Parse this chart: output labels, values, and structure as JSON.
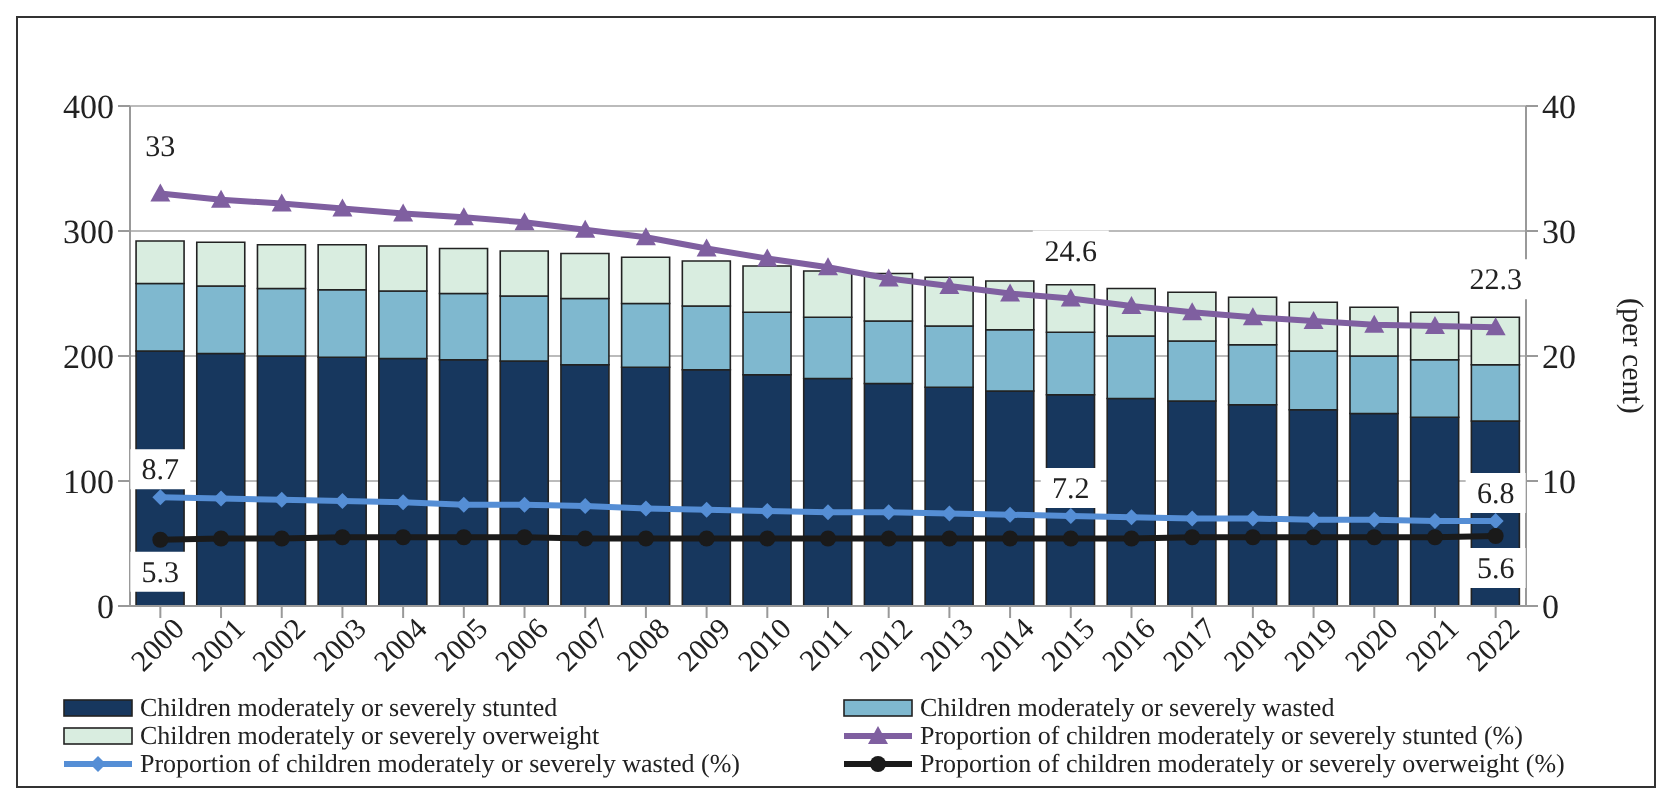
{
  "chart_data": {
    "type": "bar",
    "stacked": true,
    "y2label": "(per cent)",
    "categories": [
      "2000",
      "2001",
      "2002",
      "2003",
      "2004",
      "2005",
      "2006",
      "2007",
      "2008",
      "2009",
      "2010",
      "2011",
      "2012",
      "2013",
      "2014",
      "2015",
      "2016",
      "2017",
      "2018",
      "2019",
      "2020",
      "2021",
      "2022"
    ],
    "series": [
      {
        "name": "Children moderately or severely stunted",
        "color": "#17375e",
        "values": [
          204,
          202,
          200,
          199,
          198,
          197,
          196,
          193,
          191,
          189,
          185,
          182,
          178,
          175,
          172,
          169,
          166,
          164,
          161,
          157,
          154,
          151,
          148
        ]
      },
      {
        "name": "Children moderately or severely wasted",
        "color": "#7fb8cf",
        "values": [
          54,
          54,
          54,
          54,
          54,
          53,
          52,
          53,
          51,
          51,
          50,
          49,
          50,
          49,
          49,
          50,
          50,
          48,
          48,
          47,
          46,
          46,
          45
        ]
      },
      {
        "name": "Children moderately or severely overweight",
        "color": "#d9ede0",
        "values": [
          34,
          35,
          35,
          36,
          36,
          36,
          36,
          36,
          37,
          36,
          37,
          37,
          38,
          39,
          39,
          38,
          38,
          39,
          38,
          39,
          39,
          38,
          38
        ]
      },
      {
        "name": "Proportion of children moderately or severely stunted (%)",
        "type": "line",
        "axis": "y2",
        "marker": "triangle",
        "color": "#7f5fa0",
        "values": [
          33,
          32.5,
          32.2,
          31.8,
          31.4,
          31.1,
          30.7,
          30.1,
          29.5,
          28.6,
          27.8,
          27.1,
          26.2,
          25.6,
          25.0,
          24.6,
          24.0,
          23.5,
          23.1,
          22.8,
          22.5,
          22.4,
          22.3
        ],
        "value_labels": [
          "33",
          null,
          null,
          null,
          null,
          null,
          null,
          null,
          null,
          null,
          null,
          null,
          null,
          null,
          null,
          "24.6",
          null,
          null,
          null,
          null,
          null,
          null,
          "22.3"
        ]
      },
      {
        "name": "Proportion of children moderately or severely wasted (%)",
        "type": "line",
        "axis": "y2",
        "marker": "diamond",
        "color": "#558ed5",
        "values": [
          8.7,
          8.6,
          8.5,
          8.4,
          8.3,
          8.1,
          8.1,
          8.0,
          7.8,
          7.7,
          7.6,
          7.5,
          7.5,
          7.4,
          7.3,
          7.2,
          7.1,
          7.0,
          7.0,
          6.9,
          6.9,
          6.8,
          6.8
        ],
        "value_labels": [
          "8.7",
          null,
          null,
          null,
          null,
          null,
          null,
          null,
          null,
          null,
          null,
          null,
          null,
          null,
          null,
          "7.2",
          null,
          null,
          null,
          null,
          null,
          null,
          "6.8"
        ]
      },
      {
        "name": "Proportion of children moderately or severely overweight (%)",
        "type": "line",
        "axis": "y2",
        "marker": "circle",
        "color": "#1a1a1a",
        "values": [
          5.3,
          5.4,
          5.4,
          5.5,
          5.5,
          5.5,
          5.5,
          5.4,
          5.4,
          5.4,
          5.4,
          5.4,
          5.4,
          5.4,
          5.4,
          5.4,
          5.4,
          5.5,
          5.5,
          5.5,
          5.5,
          5.5,
          5.6
        ],
        "value_labels": [
          "5.3",
          null,
          null,
          null,
          null,
          null,
          null,
          null,
          null,
          null,
          null,
          null,
          null,
          null,
          null,
          null,
          null,
          null,
          null,
          null,
          null,
          null,
          "5.6"
        ]
      }
    ],
    "ylim": [
      0,
      400
    ],
    "yticks": [
      0,
      100,
      200,
      300,
      400
    ],
    "y2lim": [
      0,
      40
    ],
    "y2ticks": [
      0,
      10,
      20,
      30,
      40
    ],
    "grid": "y",
    "legend": "bottom"
  }
}
